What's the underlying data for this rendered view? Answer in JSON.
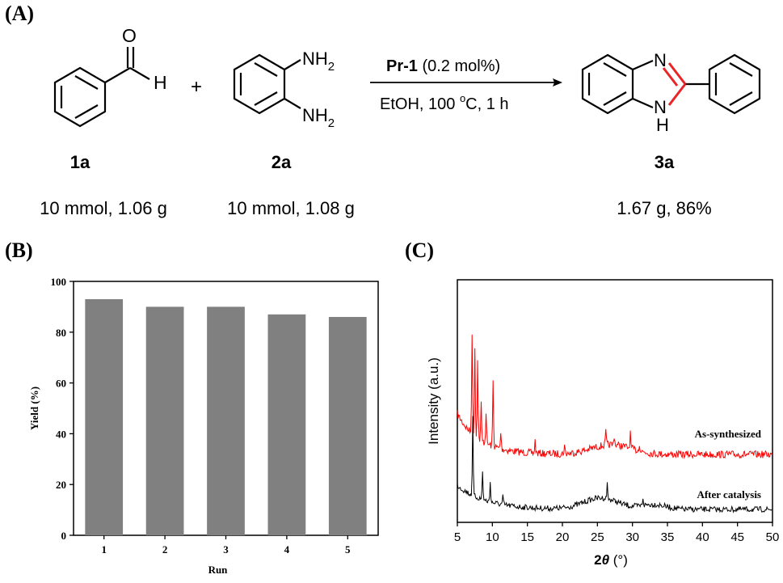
{
  "panels": {
    "a": "(A)",
    "b": "(B)",
    "c": "(C)"
  },
  "scheme": {
    "reactant1": {
      "label": "1a",
      "amount": "10 mmol, 1.06 g",
      "aldehyde_o": "O",
      "aldehyde_h": "H"
    },
    "plus": "+",
    "reactant2": {
      "label": "2a",
      "amount": "10 mmol, 1.08 g",
      "nh2_top": "NH",
      "nh2_bottom": "NH",
      "sub": "2"
    },
    "arrow": {
      "catalyst": "Pr-1",
      "loading": " (0.2 mol%)",
      "conditions_pre": "EtOH, 100 ",
      "deg_sup": "o",
      "conditions_post": "C, 1 h"
    },
    "product": {
      "label": "3a",
      "amount": "1.67 g, 86%",
      "n_label": "N",
      "nh_label": "N",
      "h_label": "H",
      "highlight_color": "#e8262a"
    }
  },
  "chart_data": [
    {
      "type": "bar",
      "xlabel": "Run",
      "ylabel": "Yield (%)",
      "categories": [
        "1",
        "2",
        "3",
        "4",
        "5"
      ],
      "values": [
        93,
        90,
        90,
        87,
        86
      ],
      "ylim": [
        0,
        100
      ],
      "yticks": [
        0,
        20,
        40,
        60,
        80,
        100
      ],
      "bar_color": "#808080"
    },
    {
      "type": "line",
      "xlabel_pre": "2",
      "xlabel_theta": "θ",
      "xlabel_post": " (°)",
      "ylabel": "Intensity (a.u.)",
      "xlim": [
        5,
        50
      ],
      "xticks": [
        5,
        10,
        15,
        20,
        25,
        30,
        35,
        40,
        45,
        50
      ],
      "series": [
        {
          "name": "As-synthesized",
          "color": "#ff0000"
        },
        {
          "name": "After catalysis",
          "color": "#000000"
        }
      ]
    }
  ]
}
